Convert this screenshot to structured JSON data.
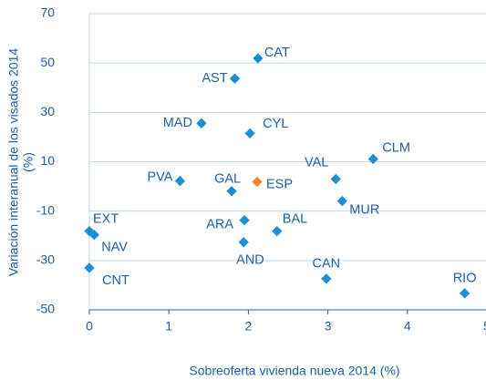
{
  "chart_data": {
    "type": "scatter",
    "ylabel": [
      "Variación interanual de los visados 2014",
      "(%)"
    ],
    "xlabel": "Sobreoferta vivienda nueva 2014 (%)",
    "labels": [
      "CAT",
      "AST",
      "MAD",
      "CYL",
      "VAL",
      "CLM",
      "PVA",
      "GAL",
      "ESP",
      "MUR",
      "ARA",
      "BAL",
      "AND",
      "EXT",
      "NAV",
      "CNT",
      "CAN",
      "RIO"
    ],
    "x": [
      2.12,
      1.83,
      1.41,
      2.02,
      3.1,
      3.57,
      1.14,
      1.79,
      2.11,
      3.18,
      1.95,
      2.36,
      1.94,
      0.0,
      0.06,
      0.0,
      2.98,
      4.72
    ],
    "y": [
      51.9,
      43.7,
      25.6,
      21.5,
      3.0,
      11.1,
      2.2,
      -1.9,
      1.9,
      -5.9,
      -13.7,
      -18.1,
      -22.6,
      -18.1,
      -19.6,
      -33,
      -37.4,
      -43.3
    ],
    "colors": [
      "#1a8fd6",
      "#1a8fd6",
      "#1a8fd6",
      "#1a8fd6",
      "#1a8fd6",
      "#1a8fd6",
      "#1a8fd6",
      "#1a8fd6",
      "#f08a24",
      "#1a8fd6",
      "#1a8fd6",
      "#1a8fd6",
      "#1a8fd6",
      "#1a8fd6",
      "#1a8fd6",
      "#1a8fd6",
      "#1a8fd6",
      "#1a8fd6"
    ],
    "xlim": [
      0,
      5
    ],
    "xticks": [
      0,
      1,
      2,
      3,
      4,
      5
    ],
    "ylim": [
      -50,
      70
    ],
    "yticks": [
      -50,
      -30,
      -10,
      10,
      30,
      50,
      70
    ],
    "grid": true
  }
}
